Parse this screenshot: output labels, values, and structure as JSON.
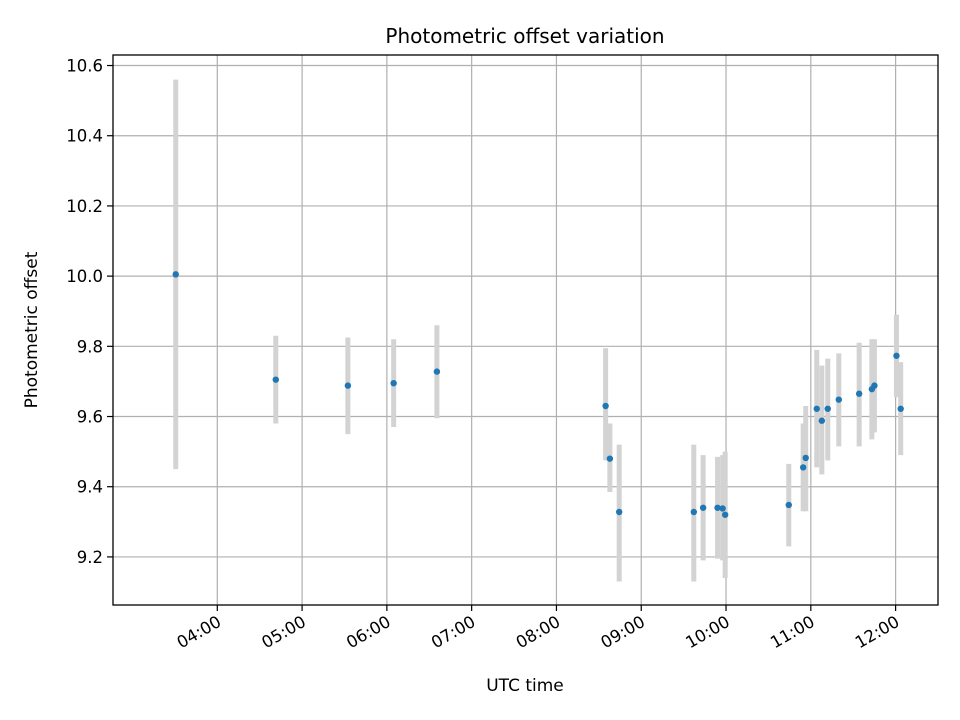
{
  "chart_data": {
    "type": "scatter",
    "title": "Photometric offset variation",
    "xlabel": "UTC time",
    "ylabel": "Photometric offset",
    "x_unit": "hours UTC",
    "xlim": [
      2.77,
      12.5
    ],
    "ylim": [
      9.063,
      10.63
    ],
    "x_ticks": [
      {
        "value": 4,
        "label": "04:00"
      },
      {
        "value": 5,
        "label": "05:00"
      },
      {
        "value": 6,
        "label": "06:00"
      },
      {
        "value": 7,
        "label": "07:00"
      },
      {
        "value": 8,
        "label": "08:00"
      },
      {
        "value": 9,
        "label": "09:00"
      },
      {
        "value": 10,
        "label": "10:00"
      },
      {
        "value": 11,
        "label": "11:00"
      },
      {
        "value": 12,
        "label": "12:00"
      }
    ],
    "y_ticks": [
      {
        "value": 9.2,
        "label": "9.2"
      },
      {
        "value": 9.4,
        "label": "9.4"
      },
      {
        "value": 9.6,
        "label": "9.6"
      },
      {
        "value": 9.8,
        "label": "9.8"
      },
      {
        "value": 10.0,
        "label": "10.0"
      },
      {
        "value": 10.2,
        "label": "10.2"
      },
      {
        "value": 10.4,
        "label": "10.4"
      },
      {
        "value": 10.6,
        "label": "10.6"
      }
    ],
    "grid": true,
    "point_color": "#1f77b4",
    "errorbar_color": "#d3d3d3",
    "points": [
      {
        "x": 3.51,
        "y": 10.005,
        "lo": 9.45,
        "hi": 10.56
      },
      {
        "x": 4.69,
        "y": 9.705,
        "lo": 9.58,
        "hi": 9.83
      },
      {
        "x": 5.54,
        "y": 9.688,
        "lo": 9.55,
        "hi": 9.825
      },
      {
        "x": 6.08,
        "y": 9.695,
        "lo": 9.57,
        "hi": 9.82
      },
      {
        "x": 6.59,
        "y": 9.728,
        "lo": 9.595,
        "hi": 9.86
      },
      {
        "x": 8.58,
        "y": 9.63,
        "lo": 9.475,
        "hi": 9.795
      },
      {
        "x": 8.63,
        "y": 9.48,
        "lo": 9.385,
        "hi": 9.58
      },
      {
        "x": 8.74,
        "y": 9.328,
        "lo": 9.13,
        "hi": 9.52
      },
      {
        "x": 9.62,
        "y": 9.328,
        "lo": 9.13,
        "hi": 9.52
      },
      {
        "x": 9.73,
        "y": 9.34,
        "lo": 9.19,
        "hi": 9.49
      },
      {
        "x": 9.9,
        "y": 9.34,
        "lo": 9.195,
        "hi": 9.485
      },
      {
        "x": 9.96,
        "y": 9.338,
        "lo": 9.19,
        "hi": 9.49
      },
      {
        "x": 9.99,
        "y": 9.32,
        "lo": 9.14,
        "hi": 9.5
      },
      {
        "x": 10.74,
        "y": 9.348,
        "lo": 9.23,
        "hi": 9.465
      },
      {
        "x": 10.91,
        "y": 9.455,
        "lo": 9.33,
        "hi": 9.58
      },
      {
        "x": 10.94,
        "y": 9.482,
        "lo": 9.33,
        "hi": 9.63
      },
      {
        "x": 11.07,
        "y": 9.622,
        "lo": 9.455,
        "hi": 9.79
      },
      {
        "x": 11.13,
        "y": 9.588,
        "lo": 9.435,
        "hi": 9.745
      },
      {
        "x": 11.2,
        "y": 9.622,
        "lo": 9.475,
        "hi": 9.765
      },
      {
        "x": 11.33,
        "y": 9.648,
        "lo": 9.515,
        "hi": 9.78
      },
      {
        "x": 11.57,
        "y": 9.665,
        "lo": 9.515,
        "hi": 9.81
      },
      {
        "x": 11.72,
        "y": 9.678,
        "lo": 9.535,
        "hi": 9.82
      },
      {
        "x": 11.75,
        "y": 9.688,
        "lo": 9.555,
        "hi": 9.82
      },
      {
        "x": 12.01,
        "y": 9.773,
        "lo": 9.655,
        "hi": 9.89
      },
      {
        "x": 12.06,
        "y": 9.622,
        "lo": 9.49,
        "hi": 9.755
      }
    ]
  }
}
